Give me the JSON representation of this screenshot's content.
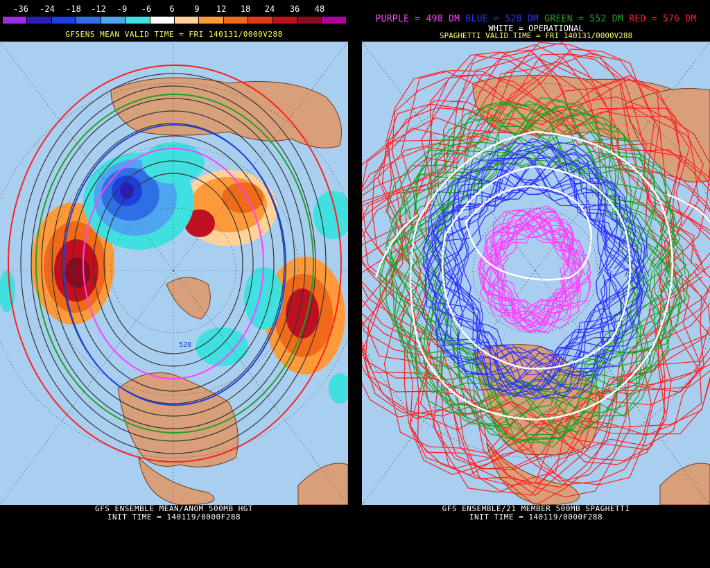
{
  "left": {
    "legend": {
      "labels": [
        "-36",
        "-24",
        "-18",
        "-12",
        "-9",
        "-6",
        "6",
        "9",
        "12",
        "18",
        "24",
        "36",
        "48"
      ],
      "colors": [
        "#9b30e0",
        "#2b1db5",
        "#1d3fe0",
        "#2f6fe6",
        "#4fa6f0",
        "#40e0e0",
        "#ffffff",
        "#ffd29a",
        "#ff9a3a",
        "#f06a1a",
        "#e03a1a",
        "#c01020",
        "#8a0a20",
        "#b000a0"
      ]
    },
    "valid_time": "GFSENS MEAN VALID TIME = FRI 140131/0000V288",
    "contour_label": "528",
    "footer_line1": "GFS ENSEMBLE MEAN/ANOM 500MB HGT",
    "footer_line2": "INIT TIME = 140119/0000F288"
  },
  "right": {
    "header": {
      "purple": "PURPLE = 498 DM",
      "blue": "BLUE = 528 DM",
      "green": "GREEN = 552 DM",
      "red": "RED = 576 DM",
      "purple_color": "#ff40ff",
      "blue_color": "#3030ff",
      "green_color": "#20a020",
      "red_color": "#ff2020"
    },
    "operational": "WHITE = OPERATIONAL",
    "valid_time": "SPAGHETTI VALID TIME = FRI 140131/0000V288",
    "footer_line1": "GFS ENSEMBLE/21 MEMBER 500MB SPAGHETTI",
    "footer_line2": "INIT TIME = 140119/0000F288"
  },
  "colors": {
    "ocean": "#a8cef0",
    "land": "#d8a07a",
    "border": "#7a3a1a"
  }
}
